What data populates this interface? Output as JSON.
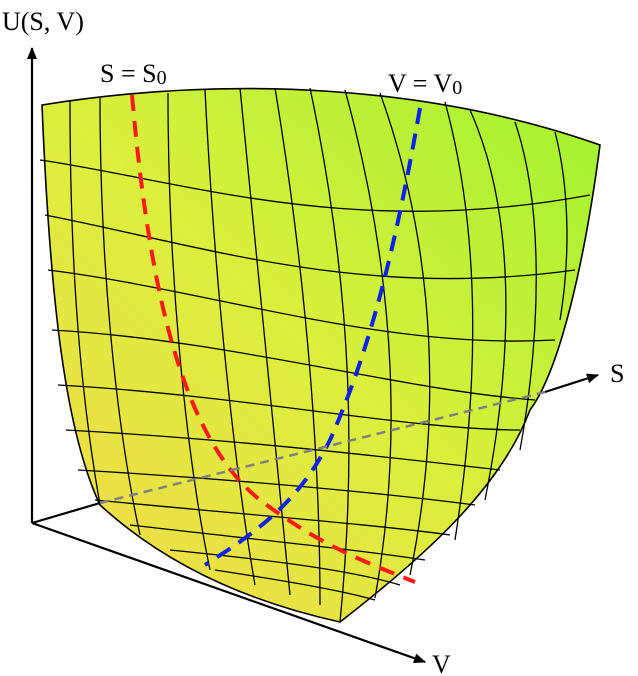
{
  "labels": {
    "u_axis": "U(S, V)",
    "s_axis": "S",
    "v_axis": "V",
    "s_eq": "S = S",
    "s_sub": "0",
    "v_eq": "V = V",
    "v_sub": "0"
  },
  "colors": {
    "surface_low": "#f4d84a",
    "surface_mid": "#dbef3c",
    "surface_high": "#9ff22f",
    "mesh": "#000000",
    "s_curve": "#ff1a1a",
    "v_curve": "#0b22ee",
    "hidden_axis": "#808080"
  }
}
